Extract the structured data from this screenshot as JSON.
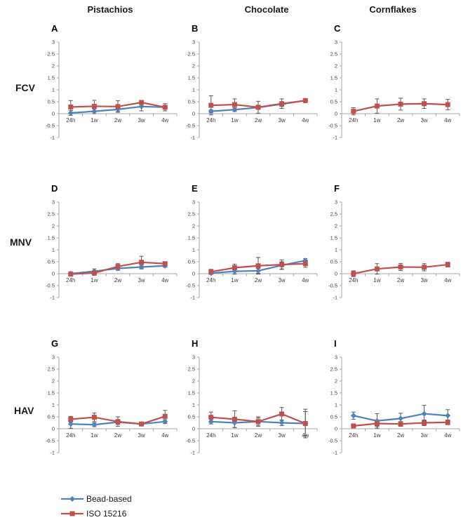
{
  "figure": {
    "column_titles": [
      "Pistachios",
      "Chocolate",
      "Cornflakes"
    ],
    "row_titles": [
      "FCV",
      "MNV",
      "HAV"
    ]
  },
  "axes": {
    "x_labels": [
      "24h",
      "1w",
      "2w",
      "3w",
      "4w"
    ],
    "y_tick_values": [
      3,
      2.5,
      2,
      1.5,
      1,
      0.5,
      0,
      -0.5,
      -1
    ],
    "y_tick_labels": [
      "3",
      "2.5",
      "2",
      "1.5",
      "1",
      "0.5",
      "0",
      "-0.5",
      "-1"
    ],
    "ylim": [
      -1,
      3
    ]
  },
  "colors": {
    "bead_based": "#4F81BD",
    "iso_15216": "#C0504D",
    "axis_line": "#A6A6A6",
    "error_bar": "#595959",
    "tick_text": "#404040"
  },
  "legend": {
    "items": [
      {
        "label": "Bead-based",
        "color": "#4F81BD",
        "marker": "diamond"
      },
      {
        "label": "ISO 15216",
        "color": "#C0504D",
        "marker": "square"
      }
    ]
  },
  "chart_data": [
    {
      "panel": "A",
      "row": "FCV",
      "column": "Pistachios",
      "type": "line",
      "x": [
        "24h",
        "1w",
        "2w",
        "3w",
        "4w"
      ],
      "ylim": [
        -1,
        3
      ],
      "series": [
        {
          "name": "Bead-based",
          "color": "#4F81BD",
          "marker": "diamond",
          "values": [
            0.03,
            0.1,
            0.18,
            0.3,
            0.27
          ],
          "err": [
            0.1,
            0.1,
            0.1,
            0.18,
            0.08
          ]
        },
        {
          "name": "ISO 15216",
          "color": "#C0504D",
          "marker": "square",
          "values": [
            0.28,
            0.31,
            0.3,
            0.47,
            0.27
          ],
          "err": [
            0.27,
            0.25,
            0.24,
            0.07,
            0.15
          ]
        }
      ]
    },
    {
      "panel": "B",
      "row": "FCV",
      "column": "Chocolate",
      "type": "line",
      "x": [
        "24h",
        "1w",
        "2w",
        "3w",
        "4w"
      ],
      "ylim": [
        -1,
        3
      ],
      "series": [
        {
          "name": "Bead-based",
          "color": "#4F81BD",
          "marker": "diamond",
          "values": [
            0.1,
            0.17,
            0.26,
            0.4,
            0.55
          ],
          "err": [
            0.07,
            0.08,
            0.08,
            0.1,
            0.05
          ]
        },
        {
          "name": "ISO 15216",
          "color": "#C0504D",
          "marker": "square",
          "values": [
            0.35,
            0.38,
            0.27,
            0.42,
            0.55
          ],
          "err": [
            0.4,
            0.24,
            0.25,
            0.2,
            0.07
          ]
        }
      ]
    },
    {
      "panel": "C",
      "row": "FCV",
      "column": "Cornflakes",
      "type": "line",
      "x": [
        "24h",
        "1w",
        "2w",
        "3w",
        "4w"
      ],
      "ylim": [
        -1,
        3
      ],
      "series": [
        {
          "name": "ISO 15216",
          "color": "#C0504D",
          "marker": "square",
          "values": [
            0.1,
            0.32,
            0.4,
            0.42,
            0.38
          ],
          "err": [
            0.15,
            0.3,
            0.25,
            0.2,
            0.22
          ]
        }
      ]
    },
    {
      "panel": "D",
      "row": "MNV",
      "column": "Pistachios",
      "type": "line",
      "x": [
        "24h",
        "1w",
        "2w",
        "3w",
        "4w"
      ],
      "ylim": [
        -1,
        3
      ],
      "series": [
        {
          "name": "Bead-based",
          "color": "#4F81BD",
          "marker": "diamond",
          "values": [
            0.0,
            0.1,
            0.22,
            0.28,
            0.33
          ],
          "err": [
            0.08,
            0.1,
            0.08,
            0.08,
            0.06
          ]
        },
        {
          "name": "ISO 15216",
          "color": "#C0504D",
          "marker": "square",
          "values": [
            -0.02,
            0.03,
            0.3,
            0.48,
            0.42
          ],
          "err": [
            0.08,
            0.1,
            0.12,
            0.25,
            0.08
          ]
        }
      ]
    },
    {
      "panel": "E",
      "row": "MNV",
      "column": "Chocolate",
      "type": "line",
      "x": [
        "24h",
        "1w",
        "2w",
        "3w",
        "4w"
      ],
      "ylim": [
        -1,
        3
      ],
      "series": [
        {
          "name": "Bead-based",
          "color": "#4F81BD",
          "marker": "diamond",
          "values": [
            0.02,
            0.1,
            0.12,
            0.35,
            0.55
          ],
          "err": [
            0.05,
            0.12,
            0.1,
            0.15,
            0.08
          ]
        },
        {
          "name": "ISO 15216",
          "color": "#C0504D",
          "marker": "square",
          "values": [
            0.08,
            0.25,
            0.33,
            0.38,
            0.42
          ],
          "err": [
            0.1,
            0.15,
            0.35,
            0.2,
            0.15
          ]
        }
      ]
    },
    {
      "panel": "F",
      "row": "MNV",
      "column": "Cornflakes",
      "type": "line",
      "x": [
        "24h",
        "1w",
        "2w",
        "3w",
        "4w"
      ],
      "ylim": [
        -1,
        3
      ],
      "series": [
        {
          "name": "ISO 15216",
          "color": "#C0504D",
          "marker": "square",
          "values": [
            0.0,
            0.2,
            0.28,
            0.27,
            0.38
          ],
          "err": [
            0.12,
            0.22,
            0.15,
            0.15,
            0.1
          ]
        }
      ]
    },
    {
      "panel": "G",
      "row": "HAV",
      "column": "Pistachios",
      "type": "line",
      "x": [
        "24h",
        "1w",
        "2w",
        "3w",
        "4w"
      ],
      "ylim": [
        -1,
        3
      ],
      "series": [
        {
          "name": "Bead-based",
          "color": "#4F81BD",
          "marker": "diamond",
          "values": [
            0.2,
            0.17,
            0.28,
            0.2,
            0.3
          ],
          "err": [
            0.18,
            0.08,
            0.1,
            0.05,
            0.08
          ]
        },
        {
          "name": "ISO 15216",
          "color": "#C0504D",
          "marker": "square",
          "values": [
            0.4,
            0.48,
            0.3,
            0.2,
            0.52
          ],
          "err": [
            0.12,
            0.18,
            0.2,
            0.05,
            0.25
          ]
        }
      ]
    },
    {
      "panel": "H",
      "row": "HAV",
      "column": "Chocolate",
      "type": "line",
      "x": [
        "24h",
        "1w",
        "2w",
        "3w",
        "4w"
      ],
      "ylim": [
        -1,
        3
      ],
      "series": [
        {
          "name": "Bead-based",
          "color": "#4F81BD",
          "marker": "diamond",
          "values": [
            0.3,
            0.25,
            0.3,
            0.25,
            0.22
          ],
          "err": [
            0.1,
            0.2,
            0.15,
            0.12,
            0.5
          ]
        },
        {
          "name": "ISO 15216",
          "color": "#C0504D",
          "marker": "square",
          "values": [
            0.48,
            0.4,
            0.3,
            0.62,
            0.22
          ],
          "err": [
            0.22,
            0.35,
            0.2,
            0.27,
            0.6
          ]
        }
      ]
    },
    {
      "panel": "I",
      "row": "HAV",
      "column": "Cornflakes",
      "type": "line",
      "x": [
        "24h",
        "1w",
        "2w",
        "3w",
        "4w"
      ],
      "ylim": [
        -1,
        3
      ],
      "series": [
        {
          "name": "Bead-based",
          "color": "#4F81BD",
          "marker": "diamond",
          "values": [
            0.55,
            0.33,
            0.43,
            0.63,
            0.55
          ],
          "err": [
            0.15,
            0.3,
            0.22,
            0.35,
            0.25
          ]
        },
        {
          "name": "ISO 15216",
          "color": "#C0504D",
          "marker": "square",
          "values": [
            0.12,
            0.22,
            0.2,
            0.25,
            0.27
          ],
          "err": [
            0.05,
            0.12,
            0.1,
            0.12,
            0.1
          ]
        }
      ]
    }
  ]
}
